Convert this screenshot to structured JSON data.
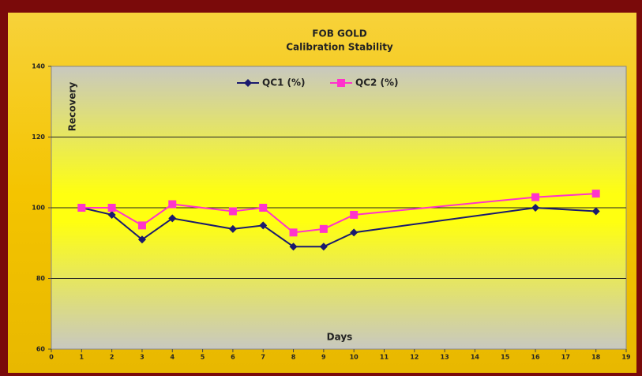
{
  "chart_data": {
    "type": "line",
    "title": "FOB GOLD",
    "subtitle": "Calibration Stability",
    "x_label": "Days",
    "y_label": "Recovery",
    "x": [
      1,
      2,
      3,
      4,
      6,
      7,
      8,
      9,
      10,
      16,
      18
    ],
    "series": [
      {
        "name": "QC1 (%)",
        "color": "#1a1a6e",
        "marker": "diamond",
        "values": [
          100,
          98,
          91,
          97,
          94,
          95,
          89,
          89,
          93,
          100,
          99
        ]
      },
      {
        "name": "QC2 (%)",
        "color": "#ff33cc",
        "marker": "square",
        "values": [
          100,
          100,
          95,
          101,
          99,
          100,
          93,
          94,
          98,
          103,
          104
        ]
      }
    ],
    "xlim": [
      0,
      19
    ],
    "xticks": [
      0,
      1,
      2,
      3,
      4,
      5,
      6,
      7,
      8,
      9,
      10,
      11,
      12,
      13,
      14,
      15,
      16,
      17,
      18,
      19
    ],
    "ylim": [
      60,
      140
    ],
    "yticks": [
      60,
      80,
      100,
      120,
      140
    ],
    "grid": true,
    "legend": "top"
  }
}
